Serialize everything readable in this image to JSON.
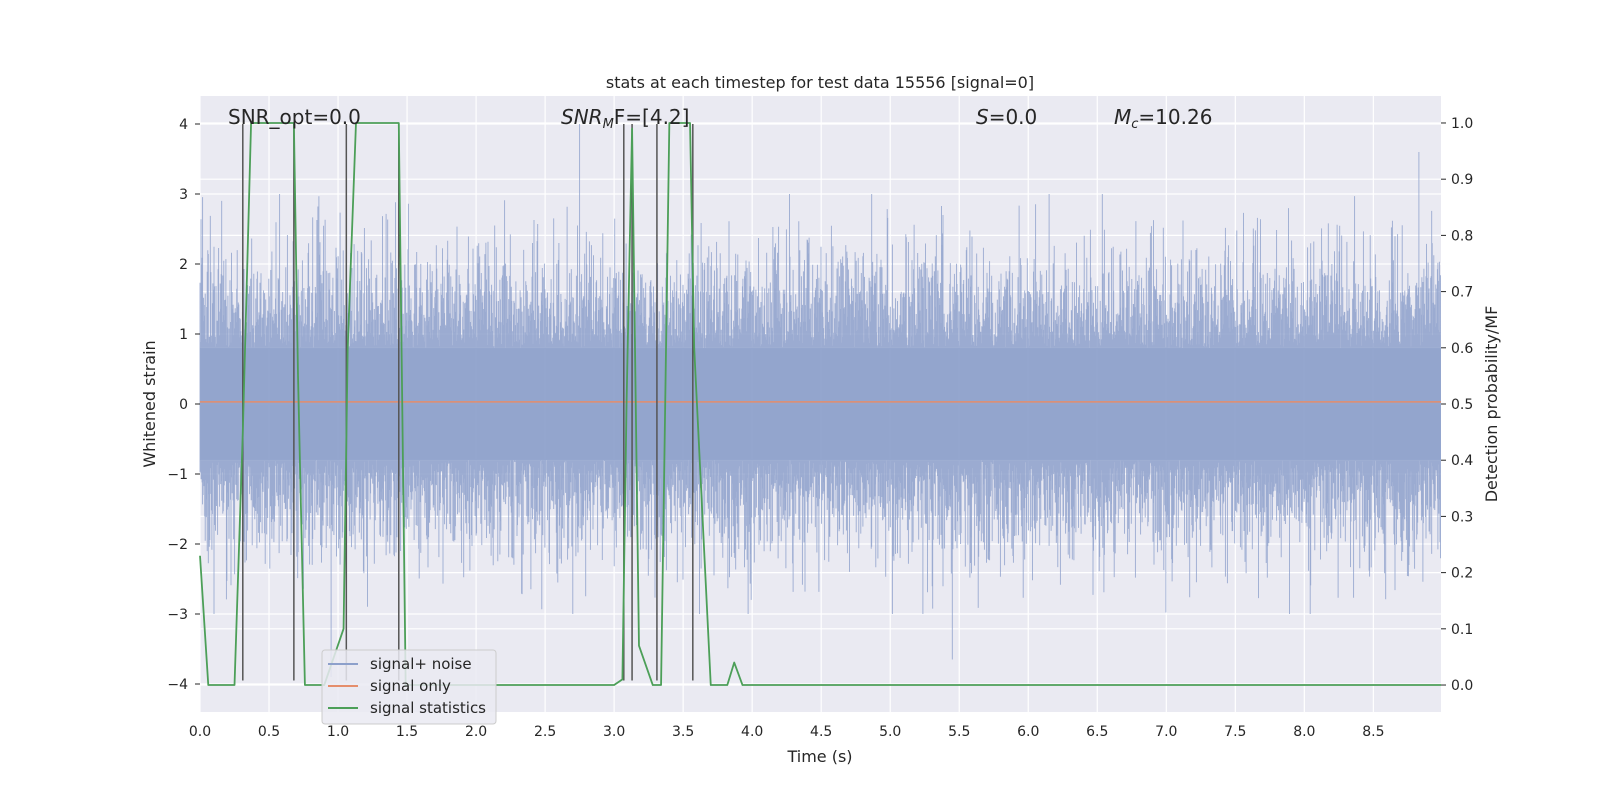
{
  "chart_data": {
    "type": "line",
    "title": "stats at each timestep for test data 15556 [signal=0]",
    "xlabel": "Time (s)",
    "ylabel_left": "Whitened strain",
    "ylabel_right": "Detection probability/MF",
    "xlim": [
      0.0,
      8.99
    ],
    "ylim_left": [
      -4.4,
      4.4
    ],
    "ylim_right": [
      -0.048,
      1.048
    ],
    "x_ticks": [
      "0.0",
      "0.5",
      "1.0",
      "1.5",
      "2.0",
      "2.5",
      "3.0",
      "3.5",
      "4.0",
      "4.5",
      "5.0",
      "5.5",
      "6.0",
      "6.5",
      "7.0",
      "7.5",
      "8.0",
      "8.5"
    ],
    "y_left_ticks": [
      "−4",
      "−3",
      "−2",
      "−1",
      "0",
      "1",
      "2",
      "3",
      "4"
    ],
    "y_right_ticks": [
      "0.0",
      "0.1",
      "0.2",
      "0.3",
      "0.4",
      "0.5",
      "0.6",
      "0.7",
      "0.8",
      "0.9",
      "1.0"
    ],
    "annotations": {
      "snr_opt": "SNR_opt=0.0",
      "snr_mf_sym": "SNR",
      "snr_mf_sub": "M",
      "snr_mf_rest": "F=[4.2]",
      "s_sym": "S",
      "s_rest": "=0.0",
      "mc_sym": "M",
      "mc_sub": "c",
      "mc_rest": "=10.26"
    },
    "legend": {
      "position": "lower-left",
      "entries": [
        "signal+ noise",
        "signal only",
        "signal statistics"
      ]
    },
    "series": [
      {
        "name": "signal+ noise",
        "kind": "noise",
        "color": "#8da0cb",
        "x_range": [
          0.0,
          8.99
        ],
        "y_range_approx": [
          -3.9,
          4.0
        ],
        "notable_spikes": [
          [
            2.75,
            4.0
          ],
          [
            8.83,
            3.6
          ],
          [
            5.45,
            -3.65
          ],
          [
            0.95,
            -3.9
          ]
        ]
      },
      {
        "name": "signal only",
        "kind": "line",
        "color": "#e58e6c",
        "x": [
          0.0,
          8.99
        ],
        "y": [
          0.03,
          0.03
        ]
      },
      {
        "name": "signal statistics",
        "kind": "line",
        "axis": "right",
        "color": "#4c9f58",
        "x": [
          0.0,
          0.06,
          0.1,
          0.25,
          0.31,
          0.37,
          0.4,
          0.5,
          0.68,
          0.71,
          0.76,
          0.81,
          0.9,
          1.04,
          1.07,
          1.13,
          1.23,
          1.44,
          1.49,
          1.6,
          2.5,
          3.0,
          3.06,
          3.09,
          3.13,
          3.18,
          3.28,
          3.34,
          3.4,
          3.55,
          3.58,
          3.64,
          3.7,
          3.77,
          3.82,
          3.87,
          3.93,
          4.0,
          6.0,
          8.99
        ],
        "y": [
          0.23,
          0.0,
          0.0,
          0.0,
          0.45,
          1.0,
          1.0,
          1.0,
          1.0,
          0.55,
          0.0,
          0.0,
          0.0,
          0.1,
          0.6,
          1.0,
          1.0,
          1.0,
          0.0,
          0.0,
          0.0,
          0.0,
          0.01,
          0.5,
          0.99,
          0.07,
          0.0,
          0.0,
          1.0,
          1.0,
          0.6,
          0.3,
          0.0,
          0.0,
          0.0,
          0.04,
          0.0,
          0.0,
          0.0,
          0.0
        ]
      },
      {
        "name": "markers",
        "kind": "vlines",
        "color": "#555555",
        "x": [
          0.31,
          0.68,
          1.06,
          1.44,
          3.07,
          3.13,
          3.31,
          3.57
        ],
        "y_from": -3.95,
        "y_to": 4.0
      }
    ]
  }
}
